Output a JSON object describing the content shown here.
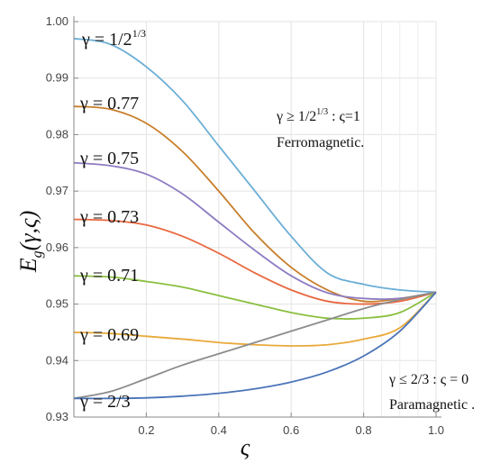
{
  "chart_data": {
    "type": "line",
    "xlabel": "ς",
    "ylabel": "E_g(γ,ς)",
    "ylabel_parts": {
      "main": "E",
      "sub": "g",
      "args": "(γ,ς)"
    },
    "xlim": [
      0.0,
      1.0
    ],
    "ylim": [
      0.93,
      1.0
    ],
    "x_ticks": [
      0.2,
      0.4,
      0.6,
      0.8,
      1.0
    ],
    "x_tick_labels": [
      "0.2",
      "0.4",
      "0.6",
      "0.8",
      "1.0"
    ],
    "y_ticks": [
      0.93,
      0.94,
      0.95,
      0.96,
      0.97,
      0.98,
      0.99,
      1.0
    ],
    "y_tick_labels": [
      "0.93",
      "0.94",
      "0.95",
      "0.96",
      "0.97",
      "0.98",
      "0.99",
      "1.00"
    ],
    "grid": true,
    "series": [
      {
        "name": "γ = 1/2^{1/3}",
        "color": "#6baed6",
        "x": [
          0,
          0.1,
          0.2,
          0.3,
          0.4,
          0.5,
          0.6,
          0.7,
          0.8,
          0.9,
          1.0
        ],
        "y": [
          0.997,
          0.996,
          0.992,
          0.986,
          0.978,
          0.97,
          0.962,
          0.9555,
          0.9535,
          0.9525,
          0.9521
        ]
      },
      {
        "name": "γ = 0.77",
        "color": "#c87e2a",
        "x": [
          0,
          0.1,
          0.2,
          0.3,
          0.4,
          0.5,
          0.6,
          0.7,
          0.8,
          0.9,
          1.0
        ],
        "y": [
          0.985,
          0.9845,
          0.982,
          0.977,
          0.97,
          0.9625,
          0.9565,
          0.9525,
          0.9505,
          0.951,
          0.9521
        ]
      },
      {
        "name": "γ = 0.75",
        "color": "#8e7cc3",
        "x": [
          0,
          0.1,
          0.2,
          0.3,
          0.4,
          0.5,
          0.6,
          0.7,
          0.8,
          0.9,
          1.0
        ],
        "y": [
          0.975,
          0.9745,
          0.973,
          0.9695,
          0.9645,
          0.9595,
          0.955,
          0.952,
          0.951,
          0.951,
          0.9521
        ]
      },
      {
        "name": "γ = 0.73",
        "color": "#e8683f",
        "x": [
          0,
          0.1,
          0.2,
          0.3,
          0.4,
          0.5,
          0.6,
          0.7,
          0.8,
          0.9,
          1.0
        ],
        "y": [
          0.965,
          0.9648,
          0.964,
          0.962,
          0.959,
          0.9555,
          0.9525,
          0.9505,
          0.95,
          0.9505,
          0.9521
        ]
      },
      {
        "name": "γ = 0.71",
        "color": "#8bbf3f",
        "x": [
          0,
          0.1,
          0.2,
          0.3,
          0.4,
          0.5,
          0.6,
          0.7,
          0.8,
          0.9,
          1.0
        ],
        "y": [
          0.955,
          0.9548,
          0.954,
          0.953,
          0.9515,
          0.95,
          0.9485,
          0.9475,
          0.9475,
          0.9485,
          0.9521
        ]
      },
      {
        "name": "γ = 0.69",
        "color": "#e9a93a",
        "x": [
          0,
          0.1,
          0.2,
          0.3,
          0.4,
          0.5,
          0.6,
          0.7,
          0.8,
          0.9,
          1.0
        ],
        "y": [
          0.945,
          0.9448,
          0.9443,
          0.9438,
          0.9432,
          0.9428,
          0.9426,
          0.9428,
          0.9438,
          0.9458,
          0.9521
        ]
      },
      {
        "name": "γ = 2/3",
        "color": "#8c8c8c",
        "x": [
          0,
          0.1,
          0.2,
          0.3,
          0.4,
          0.5,
          0.6,
          0.7,
          0.8,
          0.9,
          1.0
        ],
        "y": [
          0.9333,
          0.9345,
          0.9368,
          0.9392,
          0.9412,
          0.9432,
          0.9452,
          0.9472,
          0.9492,
          0.9508,
          0.9521
        ]
      },
      {
        "name": "paramagnetic",
        "color": "#4a74b8",
        "x": [
          0,
          0.1,
          0.2,
          0.3,
          0.4,
          0.5,
          0.6,
          0.7,
          0.8,
          0.9,
          1.0
        ],
        "y": [
          0.9333,
          0.9333,
          0.9334,
          0.9337,
          0.9342,
          0.935,
          0.9362,
          0.938,
          0.9408,
          0.9452,
          0.9521
        ]
      }
    ],
    "curve_labels": [
      {
        "text": "γ = 1/2",
        "sup": "1/3"
      },
      {
        "text": "γ = 0.77"
      },
      {
        "text": "γ = 0.75"
      },
      {
        "text": "γ = 0.73"
      },
      {
        "text": "γ = 0.71"
      },
      {
        "text": "γ = 0.69"
      },
      {
        "text": "γ = 2/3"
      }
    ],
    "annotations": {
      "ferro_condition_a": "γ ≥ 1/2",
      "ferro_condition_sup": "1/3",
      "ferro_condition_b": " : ς=1",
      "ferro_label": "Ferromagnetic.",
      "para_condition": "γ ≤ 2/3 : ς = 0",
      "para_label": "Paramagnetic ."
    }
  }
}
